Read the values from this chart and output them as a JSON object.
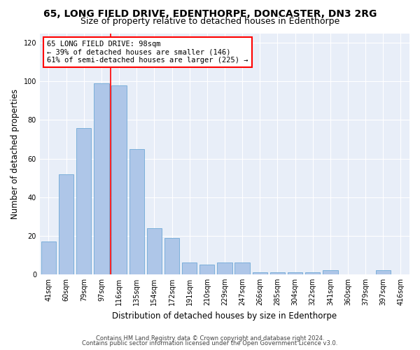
{
  "title_line1": "65, LONG FIELD DRIVE, EDENTHORPE, DONCASTER, DN3 2RG",
  "title_line2": "Size of property relative to detached houses in Edenthorpe",
  "xlabel": "Distribution of detached houses by size in Edenthorpe",
  "ylabel": "Number of detached properties",
  "categories": [
    "41sqm",
    "60sqm",
    "79sqm",
    "97sqm",
    "116sqm",
    "135sqm",
    "154sqm",
    "172sqm",
    "191sqm",
    "210sqm",
    "229sqm",
    "247sqm",
    "266sqm",
    "285sqm",
    "304sqm",
    "322sqm",
    "341sqm",
    "360sqm",
    "379sqm",
    "397sqm",
    "416sqm"
  ],
  "values": [
    17,
    52,
    76,
    99,
    98,
    65,
    24,
    19,
    6,
    5,
    6,
    6,
    1,
    1,
    1,
    1,
    2,
    0,
    0,
    2,
    0
  ],
  "bar_color": "#aec6e8",
  "bar_edge_color": "#6fa8d6",
  "property_line_x": 3.5,
  "annotation_text": "65 LONG FIELD DRIVE: 98sqm\n← 39% of detached houses are smaller (146)\n61% of semi-detached houses are larger (225) →",
  "annotation_box_color": "white",
  "annotation_box_edge_color": "red",
  "vline_color": "red",
  "ylim": [
    0,
    125
  ],
  "yticks": [
    0,
    20,
    40,
    60,
    80,
    100,
    120
  ],
  "background_color": "#e8eef8",
  "footer_line1": "Contains HM Land Registry data © Crown copyright and database right 2024.",
  "footer_line2": "Contains public sector information licensed under the Open Government Licence v3.0.",
  "title_fontsize": 10,
  "subtitle_fontsize": 9,
  "xlabel_fontsize": 8.5,
  "ylabel_fontsize": 8.5,
  "annot_fontsize": 7.5,
  "tick_fontsize": 7
}
